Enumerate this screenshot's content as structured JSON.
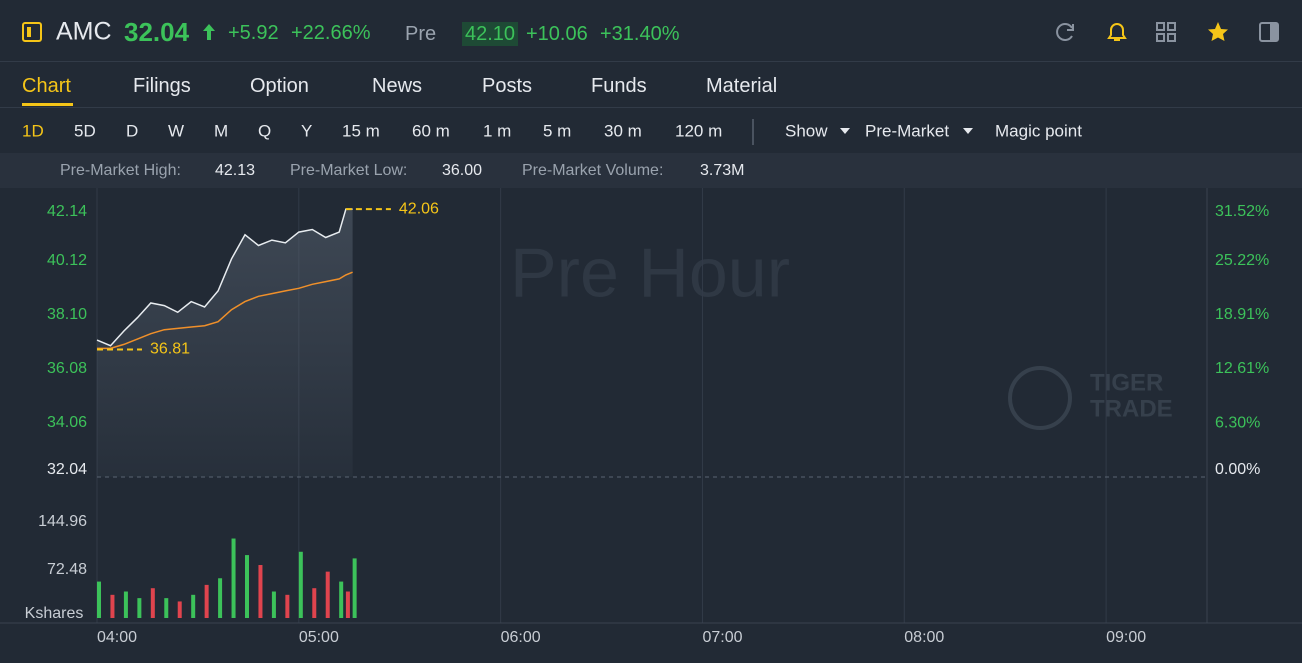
{
  "header": {
    "symbol": "AMC",
    "price": "32.04",
    "change": "+5.92",
    "change_pct": "+22.66%",
    "session": "Pre",
    "pre_price": "42.10",
    "pre_change": "+10.06",
    "pre_change_pct": "+31.40%"
  },
  "tabs": [
    "Chart",
    "Filings",
    "Option",
    "News",
    "Posts",
    "Funds",
    "Material"
  ],
  "periods": [
    "1D",
    "5D",
    "D",
    "W",
    "M",
    "Q",
    "Y",
    "15 m",
    "60 m",
    "1 m",
    "5 m",
    "30 m",
    "120 m"
  ],
  "menus": [
    "Show",
    "Pre-Market",
    "Magic point"
  ],
  "stats": [
    {
      "label": "Pre-Market High:",
      "value": "42.13"
    },
    {
      "label": "Pre-Market Low:",
      "value": "36.00"
    },
    {
      "label": "Pre-Market Volume:",
      "value": "3.73M"
    }
  ],
  "chart_data": {
    "type": "line",
    "watermark": "Pre Hour",
    "brand": [
      "TIGER",
      "TRADE"
    ],
    "x": [
      "04:00",
      "04:04",
      "04:08",
      "04:12",
      "04:16",
      "04:20",
      "04:24",
      "04:28",
      "04:32",
      "04:36",
      "04:40",
      "04:44",
      "04:48",
      "04:52",
      "04:56",
      "05:00",
      "05:04",
      "05:08",
      "05:12",
      "05:14",
      "05:16"
    ],
    "xlim": [
      "04:00",
      "09:30"
    ],
    "xticks": [
      "04:00",
      "05:00",
      "06:00",
      "07:00",
      "08:00",
      "09:00"
    ],
    "series": [
      {
        "color": "#e8ecf0",
        "values": [
          37.16,
          36.95,
          37.5,
          38.0,
          38.55,
          38.45,
          38.2,
          38.6,
          38.4,
          39.0,
          40.2,
          41.1,
          40.7,
          40.9,
          40.8,
          41.2,
          41.3,
          41.0,
          41.2,
          42.06,
          42.06
        ]
      },
      {
        "color": "#f0902a",
        "values": [
          36.85,
          36.85,
          37.0,
          37.2,
          37.4,
          37.55,
          37.6,
          37.65,
          37.7,
          37.85,
          38.3,
          38.6,
          38.8,
          38.9,
          39.0,
          39.1,
          39.25,
          39.35,
          39.45,
          39.6,
          39.7
        ]
      }
    ],
    "ylim": [
      32.04,
      42.14
    ],
    "yticks": [
      32.04,
      34.06,
      36.08,
      {
        "value": 38.1,
        "label": "38.10"
      },
      40.12,
      42.14
    ],
    "y2lim": [
      0,
      31.52
    ],
    "y2ticks": [
      {
        "value": 0,
        "label": "0.00%"
      },
      {
        "value": 6.3,
        "label": "6.30%"
      },
      {
        "value": 12.61,
        "label": "12.61%"
      },
      {
        "value": 18.91,
        "label": "18.91%"
      },
      {
        "value": 25.22,
        "label": "25.22%"
      },
      {
        "value": 31.52,
        "label": "31.52%"
      }
    ],
    "annotations": [
      {
        "x": "05:14",
        "value": 42.06
      },
      {
        "x": "04:00",
        "value": 36.81
      }
    ],
    "volume": {
      "unit": "Kshares",
      "values": [
        55,
        35,
        40,
        30,
        45,
        30,
        25,
        35,
        50,
        60,
        120,
        95,
        80,
        40,
        35,
        100,
        45,
        70,
        55,
        40,
        90
      ],
      "colors": [
        "#3cc25a",
        "#e0444e",
        "#3cc25a",
        "#3cc25a",
        "#e0444e",
        "#3cc25a",
        "#e0444e",
        "#3cc25a",
        "#e0444e",
        "#3cc25a",
        "#3cc25a",
        "#3cc25a",
        "#e0444e",
        "#3cc25a",
        "#e0444e",
        "#3cc25a",
        "#e0444e",
        "#e0444e",
        "#3cc25a",
        "#e0444e",
        "#3cc25a"
      ],
      "ylim": [
        0,
        144.96
      ],
      "yticks": [
        72.48,
        144.96
      ]
    }
  }
}
